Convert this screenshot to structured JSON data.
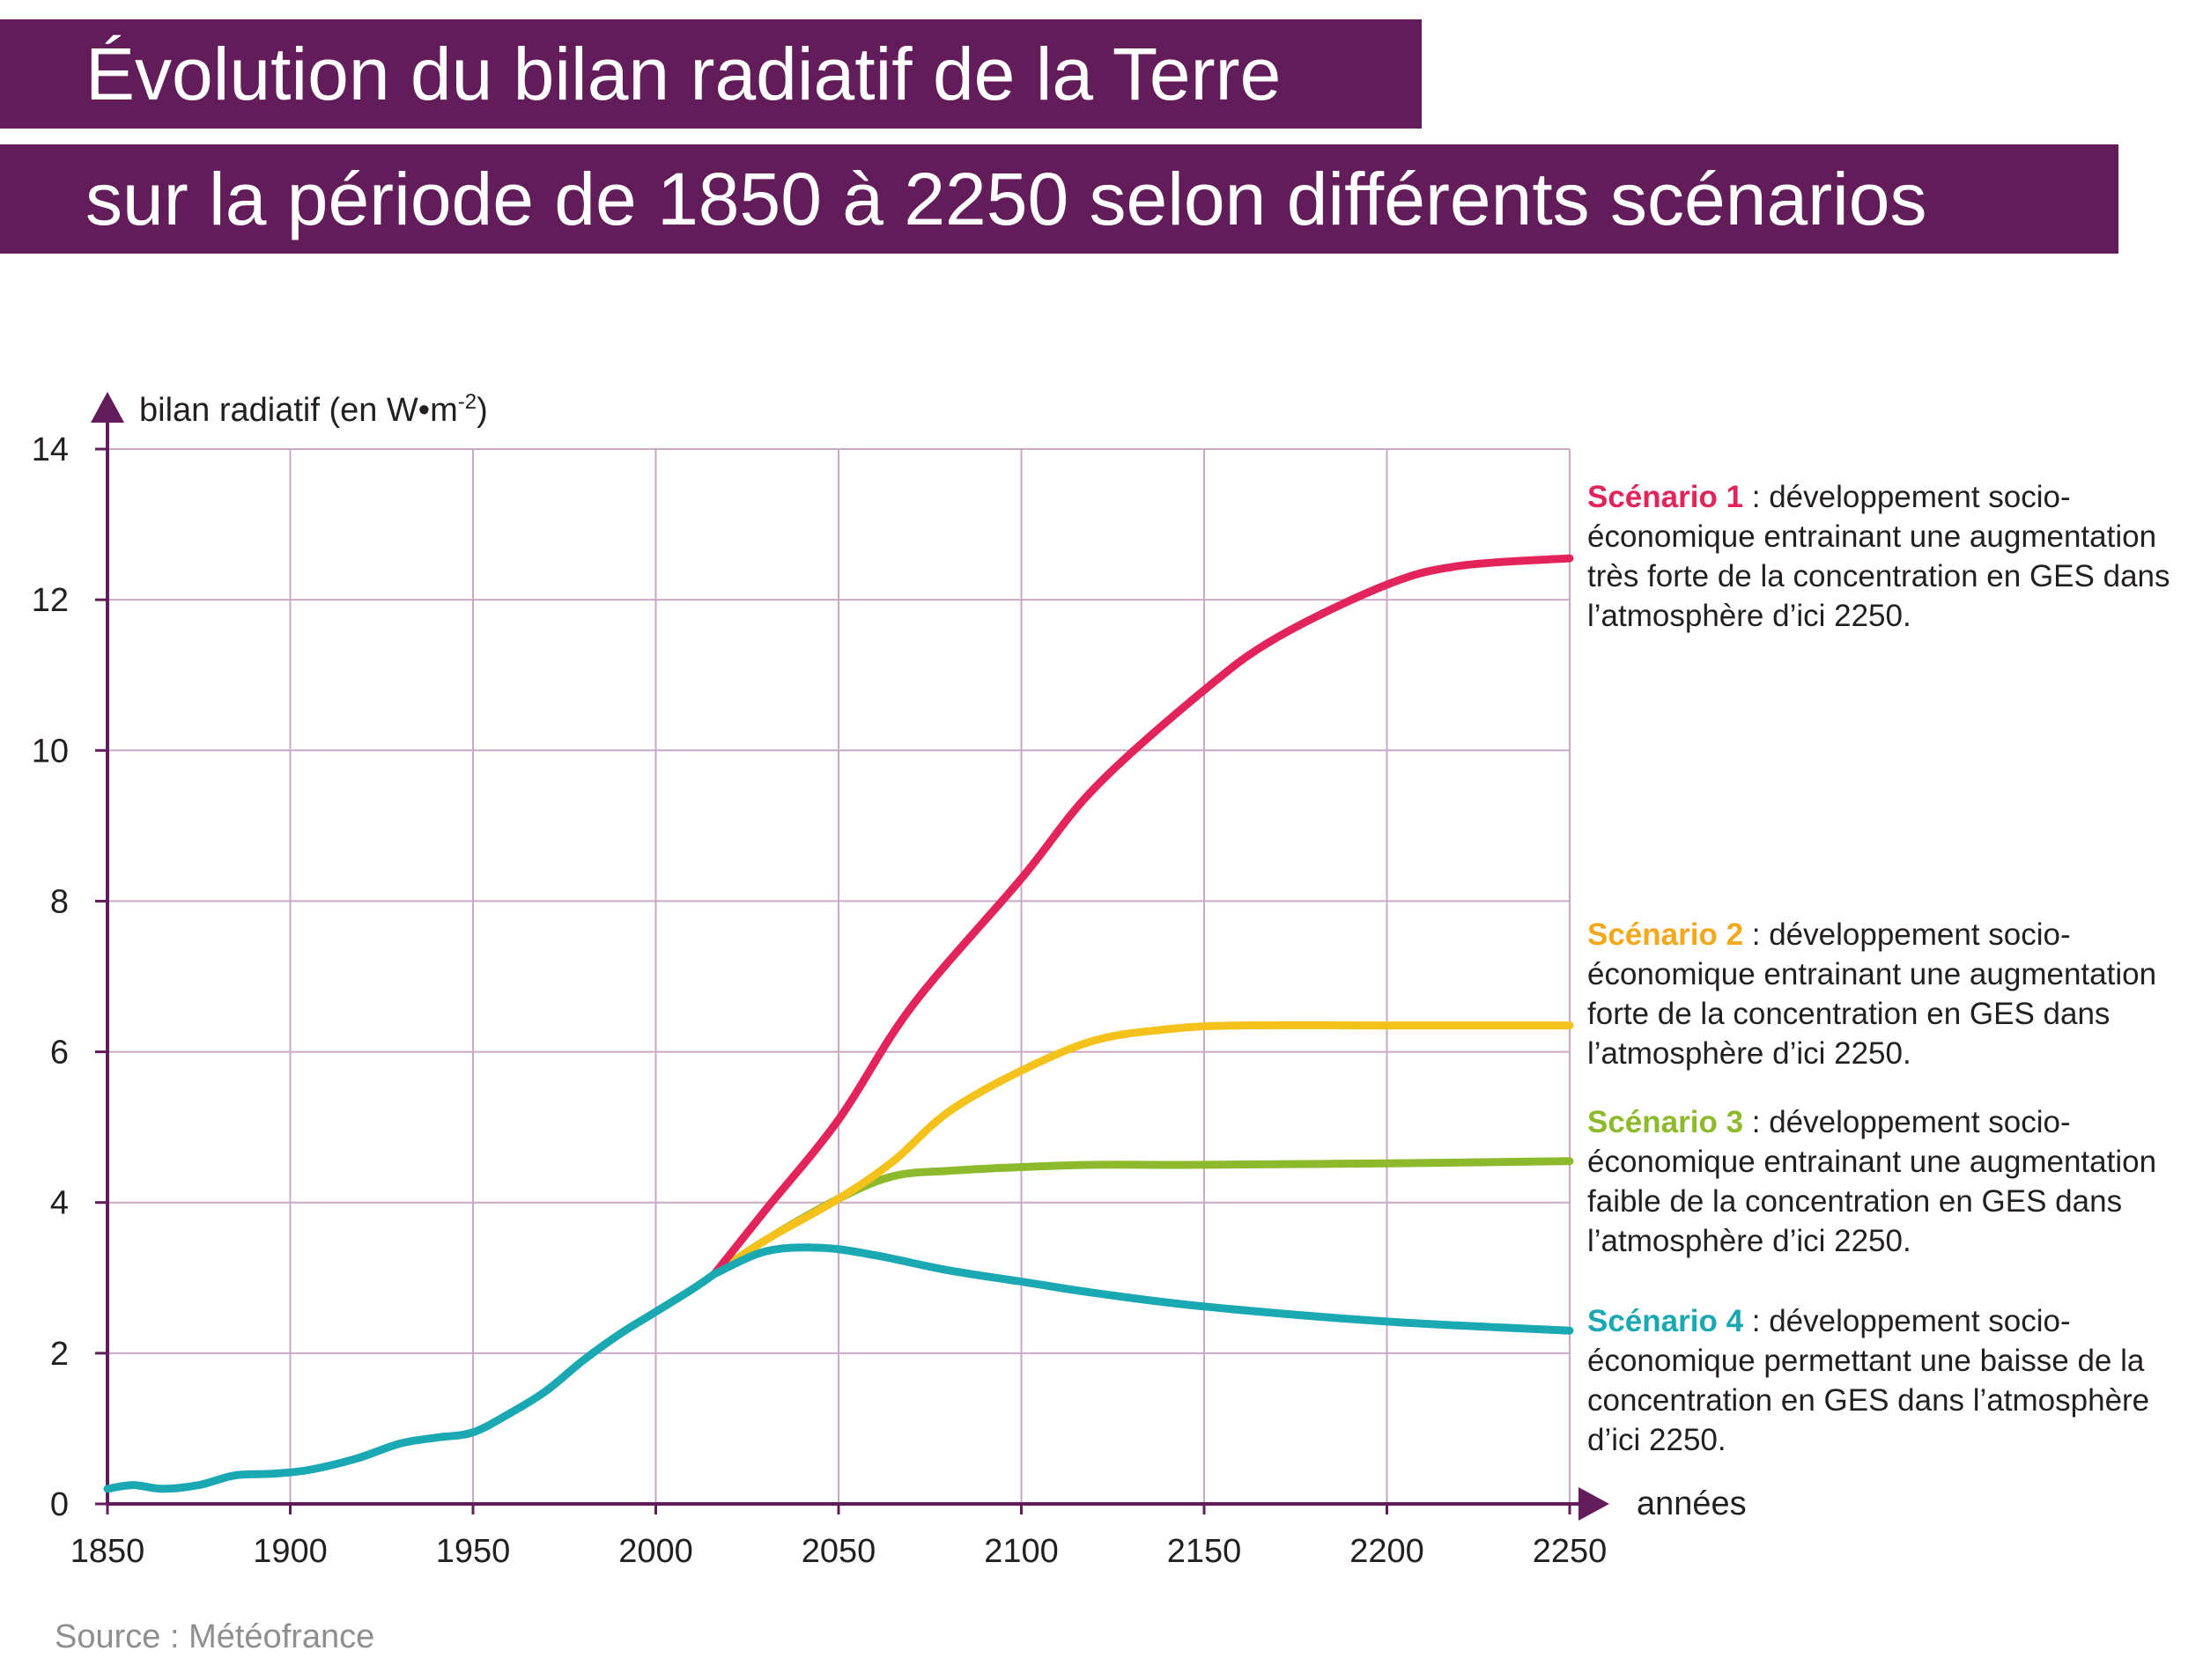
{
  "title_lines": [
    "Évolution du bilan radiatif de la Terre",
    "sur la période de 1850 à 2250 selon différents scénarios"
  ],
  "source": "Source : Météofrance",
  "legend": [
    {
      "name": "Scénario 1",
      "text": " : développement socio-économique entrainant une augmentation très forte de la concentration en GES dans l’atmosphère d’ici 2250.",
      "color": "#e3245a"
    },
    {
      "name": "Scénario 2",
      "text": " : développement socio-économique entrainant une augmentation forte de la concentration en GES dans l’atmosphère d’ici 2250.",
      "color": "#f4a81d"
    },
    {
      "name": "Scénario 3",
      "text": " : développement socio-économique entrainant une augmentation faible de la concentration en GES dans l’atmosphère d’ici 2250.",
      "color": "#8dba2d"
    },
    {
      "name": "Scénario 4",
      "text": " : développement socio-économique permettant une baisse de la concentration en GES dans l’atmosphère d’ici 2250.",
      "color": "#1aa9b2"
    }
  ],
  "chart_data": {
    "type": "line",
    "title": "Évolution du bilan radiatif de la Terre sur la période de 1850 à 2250 selon différents scénarios",
    "ylabel": "bilan radiatif (en W•m-2)",
    "ylabel_main": "bilan radiatif (en W•m",
    "ylabel_sup": "-2",
    "ylabel_end": ")",
    "xlabel": "années",
    "xlim": [
      1850,
      2250
    ],
    "ylim": [
      0,
      14
    ],
    "xticks": [
      "1850",
      "1900",
      "1950",
      "2000",
      "2050",
      "2100",
      "2150",
      "2200",
      "2250"
    ],
    "yticks": [
      "0",
      "2",
      "4",
      "6",
      "8",
      "10",
      "12",
      "14"
    ],
    "grid": true,
    "grid_color": "#c9a9c4",
    "axis_color": "#611c59",
    "historical": {
      "color": "#1aa9b2",
      "x": [
        1850,
        1857,
        1865,
        1875,
        1885,
        1895,
        1905,
        1918,
        1930,
        1940,
        1950,
        1960,
        1970,
        1980,
        1990,
        2000,
        2010,
        2016
      ],
      "y": [
        0.2,
        0.25,
        0.2,
        0.25,
        0.38,
        0.4,
        0.45,
        0.6,
        0.8,
        0.88,
        0.95,
        1.2,
        1.5,
        1.9,
        2.25,
        2.55,
        2.85,
        3.05
      ]
    },
    "series": [
      {
        "name": "Scénario 1",
        "color": "#e3245a",
        "x": [
          2016,
          2030,
          2050,
          2070,
          2100,
          2120,
          2150,
          2170,
          2200,
          2220,
          2250
        ],
        "y": [
          3.05,
          3.9,
          5.1,
          6.6,
          8.3,
          9.5,
          10.8,
          11.5,
          12.2,
          12.45,
          12.55
        ]
      },
      {
        "name": "Scénario 2",
        "color": "#f4c21b",
        "x": [
          2016,
          2030,
          2050,
          2065,
          2080,
          2100,
          2120,
          2140,
          2160,
          2200,
          2250
        ],
        "y": [
          3.05,
          3.5,
          4.05,
          4.55,
          5.2,
          5.75,
          6.15,
          6.3,
          6.35,
          6.35,
          6.35
        ]
      },
      {
        "name": "Scénario 3",
        "color": "#8dba2d",
        "x": [
          2016,
          2030,
          2050,
          2065,
          2080,
          2100,
          2120,
          2150,
          2200,
          2250
        ],
        "y": [
          3.05,
          3.5,
          4.05,
          4.35,
          4.42,
          4.47,
          4.5,
          4.5,
          4.52,
          4.55
        ]
      },
      {
        "name": "Scénario 4",
        "color": "#1aa9b2",
        "x": [
          2016,
          2030,
          2045,
          2060,
          2080,
          2100,
          2120,
          2150,
          2200,
          2250
        ],
        "y": [
          3.05,
          3.35,
          3.4,
          3.3,
          3.1,
          2.95,
          2.8,
          2.62,
          2.42,
          2.3
        ]
      }
    ]
  }
}
